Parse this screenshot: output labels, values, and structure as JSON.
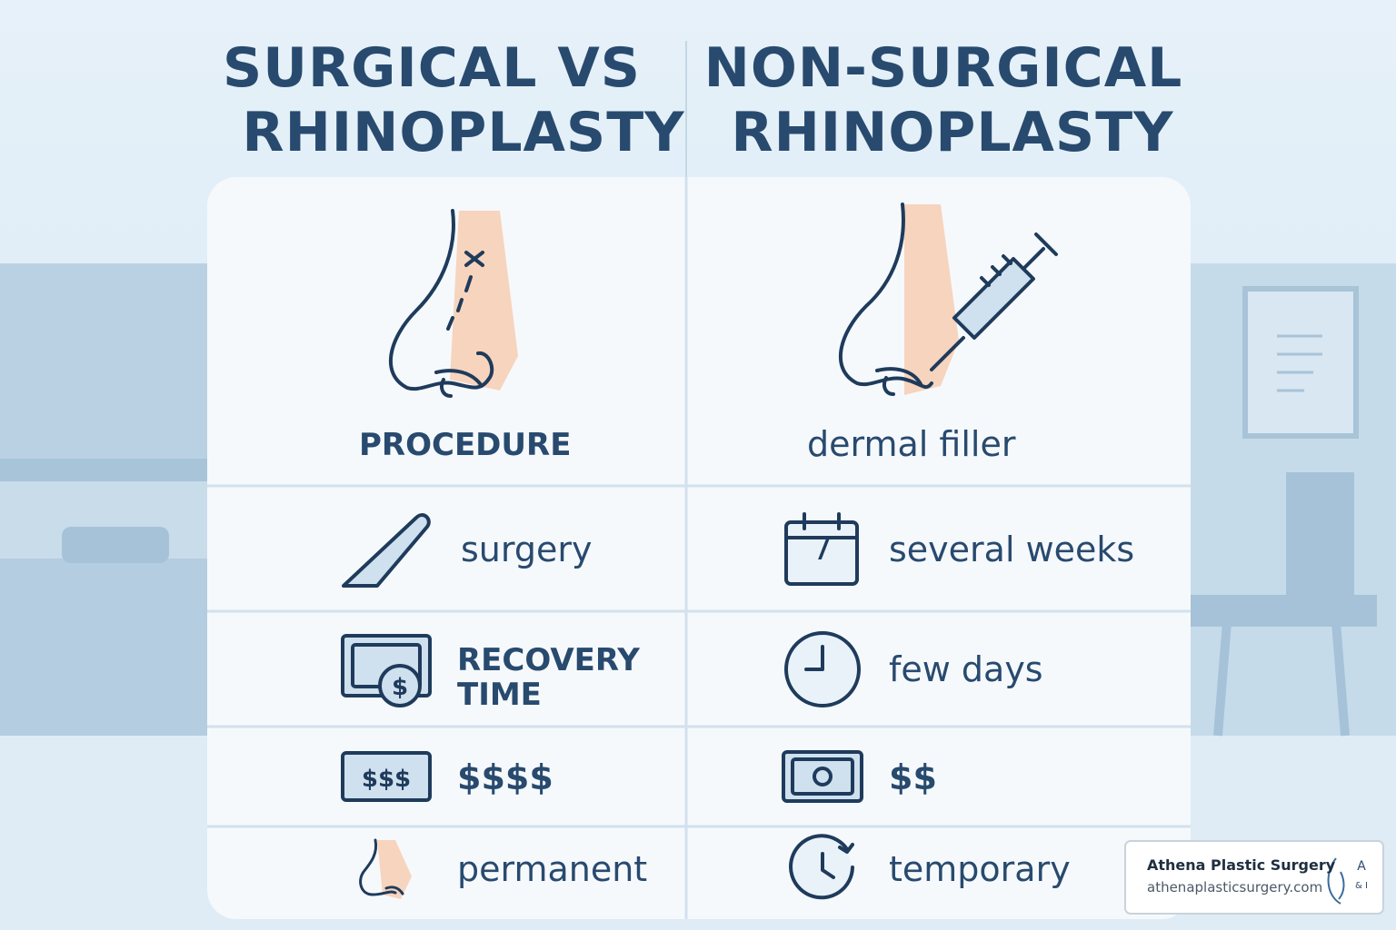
{
  "header": {
    "left_title": [
      "SURGICAL VS",
      "RHINOPLASTY"
    ],
    "right_title": [
      "NON-SURGICAL",
      "RHINOPLASTY"
    ]
  },
  "table": {
    "rows": [
      [
        "PROCEDURE",
        "dermal filler"
      ],
      [
        "surgery",
        "several weeks"
      ],
      [
        "RECOVERY TIME",
        "few days"
      ],
      [
        "$$$$",
        "$$"
      ],
      [
        "permanent",
        "temporary"
      ]
    ]
  },
  "icons": {
    "bill_label": "$$$",
    "calendar_day": "7"
  },
  "badge": {
    "name": "Athena Plastic Surgery",
    "url": "athenaplasticsurgery.com",
    "logo": [
      "A",
      "& I"
    ]
  }
}
